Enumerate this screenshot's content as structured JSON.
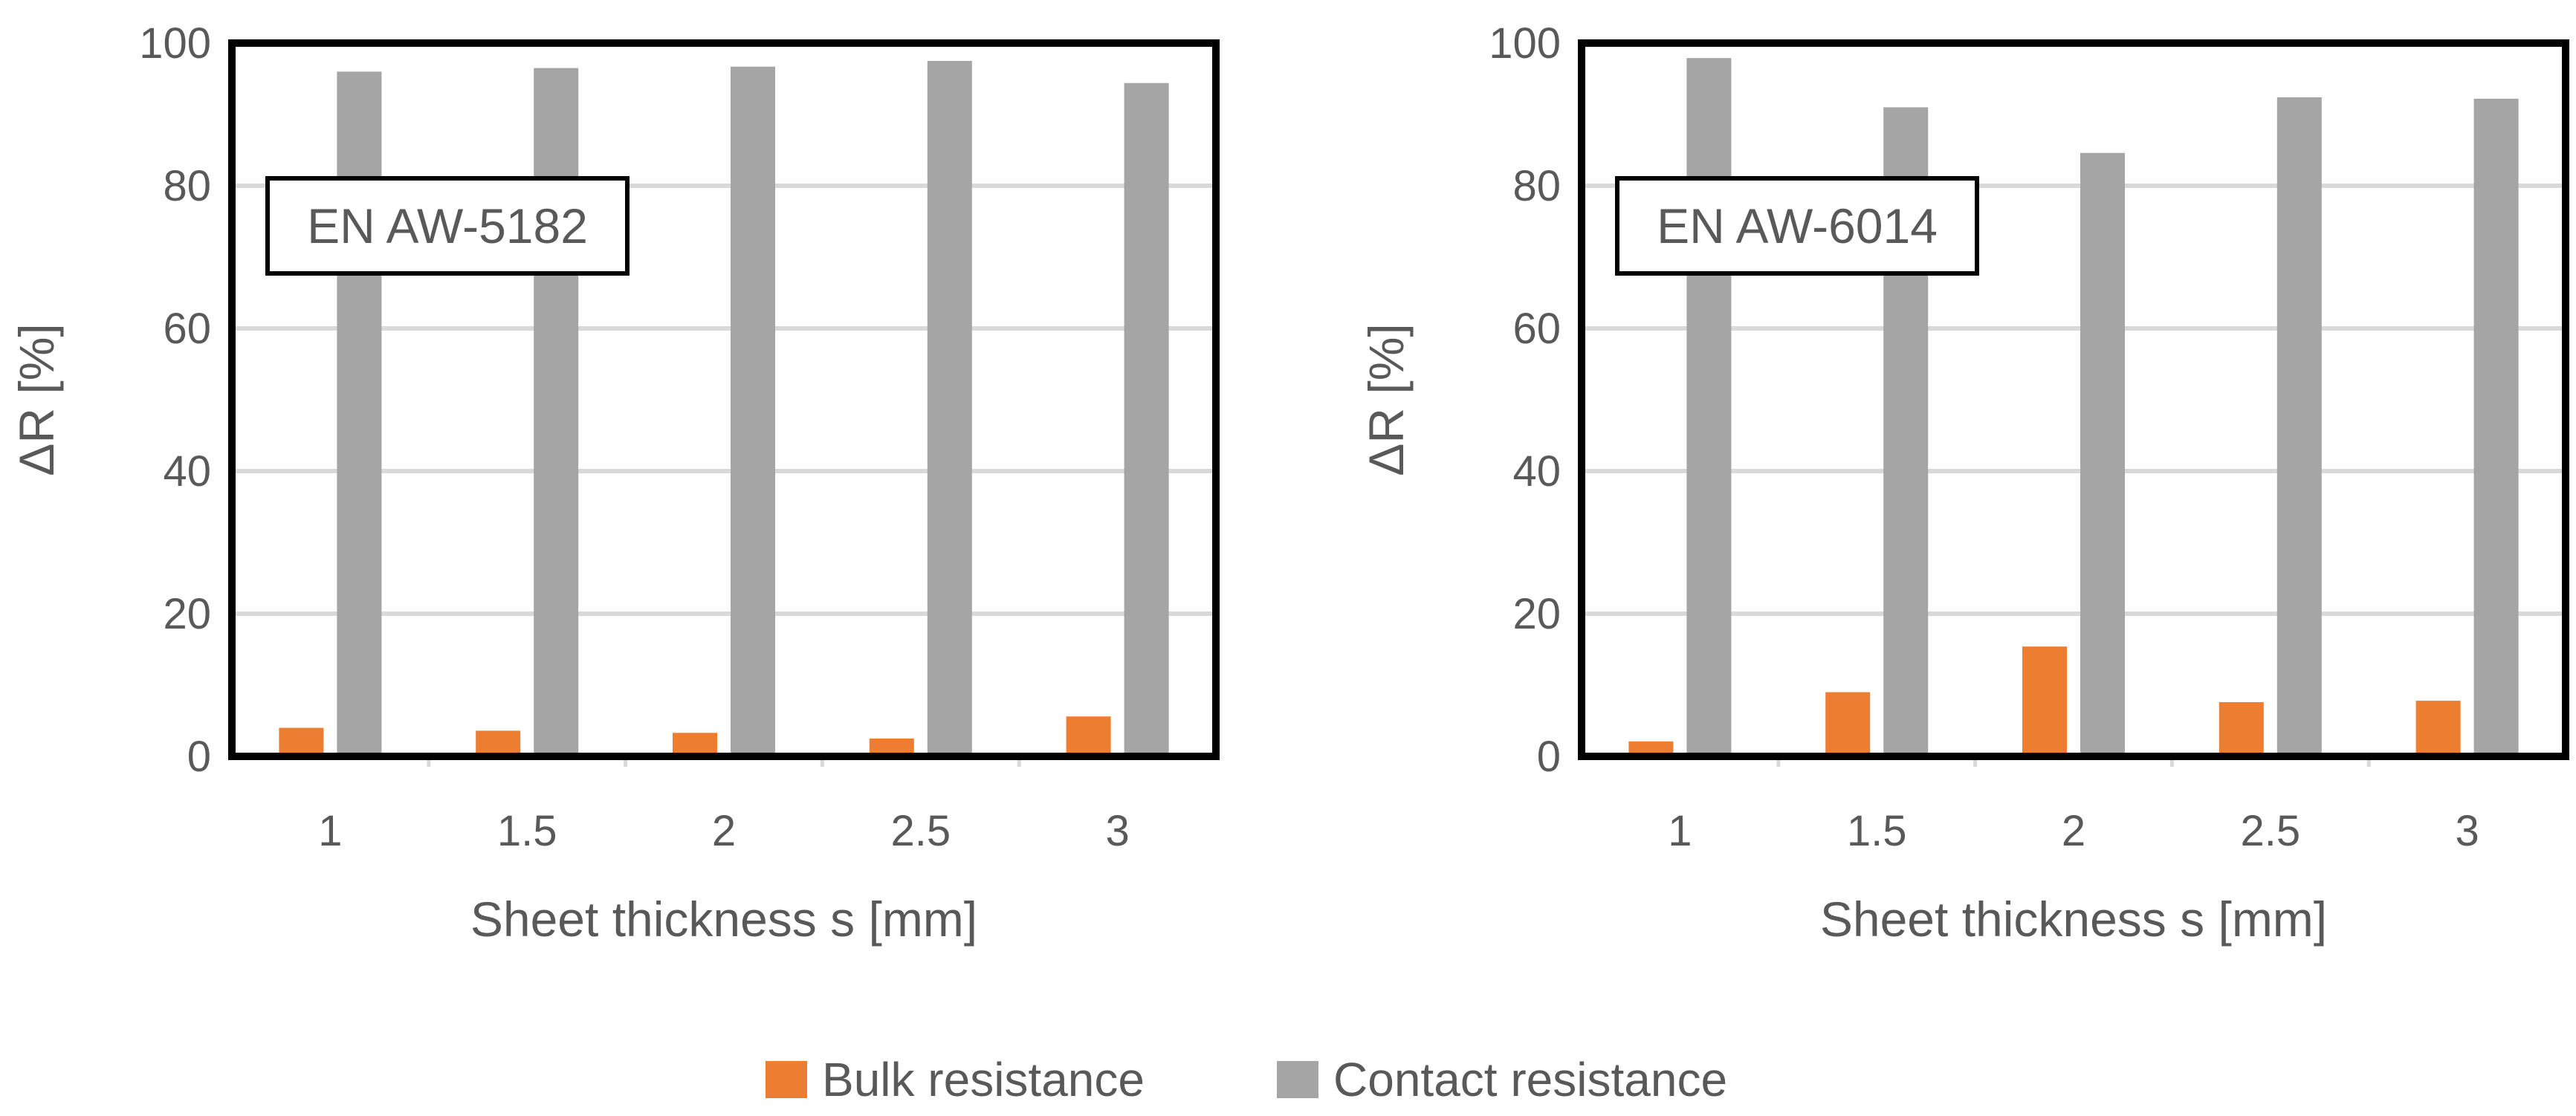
{
  "colors": {
    "bulk": "#ED7D31",
    "contact": "#A5A5A5",
    "grid": "#D9D9D9",
    "frame": "#000000",
    "text": "#595959"
  },
  "legend": {
    "items": [
      {
        "label": "Bulk resistance",
        "color": "#ED7D31"
      },
      {
        "label": "Contact resistance",
        "color": "#A5A5A5"
      }
    ],
    "position": "bottom-center"
  },
  "chart_data": [
    {
      "type": "bar",
      "panel_label": "EN AW-5182",
      "categories": [
        "1",
        "1.5",
        "2",
        "2.5",
        "3"
      ],
      "series": [
        {
          "name": "Bulk resistance",
          "values": [
            4,
            3.6,
            3.3,
            2.5,
            5.6
          ]
        },
        {
          "name": "Contact resistance",
          "values": [
            96,
            96.5,
            96.7,
            97.5,
            94.4
          ]
        }
      ],
      "xlabel": "Sheet thickness s [mm]",
      "ylabel": "ΔR [%]",
      "ylim": [
        0,
        100
      ],
      "yticks": [
        "0",
        "20",
        "40",
        "60",
        "80",
        "100"
      ],
      "grid": true
    },
    {
      "type": "bar",
      "panel_label": "EN AW-6014",
      "categories": [
        "1",
        "1.5",
        "2",
        "2.5",
        "3"
      ],
      "series": [
        {
          "name": "Bulk resistance",
          "values": [
            2.1,
            9.0,
            15.4,
            7.6,
            7.8
          ]
        },
        {
          "name": "Contact resistance",
          "values": [
            97.9,
            91.0,
            84.6,
            92.4,
            92.2
          ]
        }
      ],
      "xlabel": "Sheet thickness s [mm]",
      "ylabel": "ΔR [%]",
      "ylim": [
        0,
        100
      ],
      "yticks": [
        "0",
        "20",
        "40",
        "60",
        "80",
        "100"
      ],
      "grid": true
    }
  ]
}
